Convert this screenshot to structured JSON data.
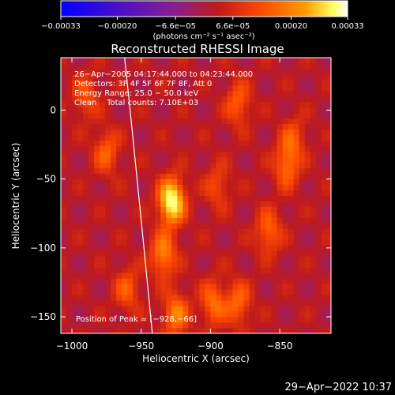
{
  "chart_data": {
    "type": "heatmap",
    "title": "Reconstructed RHESSI Image",
    "xlabel": "Heliocentric X (arcsec)",
    "ylabel": "Heliocentric Y (arcsec)",
    "xlim": [
      -1008,
      -813
    ],
    "ylim": [
      -162,
      38
    ],
    "x_ticks": [
      -1000,
      -950,
      -900,
      -850
    ],
    "x_tick_labels": [
      "−1000",
      "−950",
      "−900",
      "−850"
    ],
    "y_ticks": [
      0,
      -50,
      -100,
      -150
    ],
    "y_tick_labels": [
      "0",
      "−50",
      "−100",
      "−150"
    ],
    "colorbar": {
      "min": -0.00033,
      "max": 0.00033,
      "ticks": [
        -0.00033,
        -0.0002,
        -6.6e-05,
        6.6e-05,
        0.0002,
        0.00033
      ],
      "tick_labels": [
        "−0.00033",
        "−0.00020",
        "−6.6e−05",
        "6.6e−05",
        "0.00020",
        "0.00033"
      ],
      "units": "(photons cm⁻² s⁻¹ asec⁻²)"
    },
    "annotations": [
      "26−Apr−2005 04:17:44.000 to 04:23:44.000",
      "Detectors: 3F 4F 5F 6F 7F 8F, Att 0",
      "Energy Range: 25.0 − 50.0 keV",
      "Clean    Total counts: 7.10E+03"
    ],
    "peak_label": "Position of Peak = [−928,−66]",
    "peak": [
      -928,
      -66
    ],
    "sources": [
      {
        "x": -928,
        "y": -66,
        "intensity": 0.00033
      },
      {
        "x": -934,
        "y": -105,
        "intensity": 0.00018
      },
      {
        "x": -925,
        "y": -148,
        "intensity": 0.00017
      },
      {
        "x": -898,
        "y": -140,
        "intensity": 0.00015
      },
      {
        "x": -880,
        "y": -140,
        "intensity": 0.00014
      },
      {
        "x": -858,
        "y": -88,
        "intensity": 0.00014
      },
      {
        "x": -845,
        "y": -40,
        "intensity": 0.00015
      },
      {
        "x": -880,
        "y": 5,
        "intensity": 0.00013
      },
      {
        "x": -975,
        "y": -30,
        "intensity": 0.00013
      },
      {
        "x": -990,
        "y": 10,
        "intensity": 0.00011
      },
      {
        "x": -960,
        "y": -130,
        "intensity": 0.00012
      },
      {
        "x": -895,
        "y": -55,
        "intensity": 0.0001
      },
      {
        "x": -840,
        "y": -20,
        "intensity": 0.0001
      }
    ],
    "limb": [
      [
        -962,
        38
      ],
      [
        -958,
        0
      ],
      [
        -953,
        -50
      ],
      [
        -948,
        -100
      ],
      [
        -942,
        -162
      ]
    ],
    "limb_color": "#ffffff",
    "colormap": [
      "#0000ff",
      "#5a1fa8",
      "#8a1f8c",
      "#c01a1a",
      "#ff4a00",
      "#ff9a00",
      "#ffff60",
      "#ffffff"
    ]
  },
  "footer_date": "29−Apr−2022 10:37"
}
